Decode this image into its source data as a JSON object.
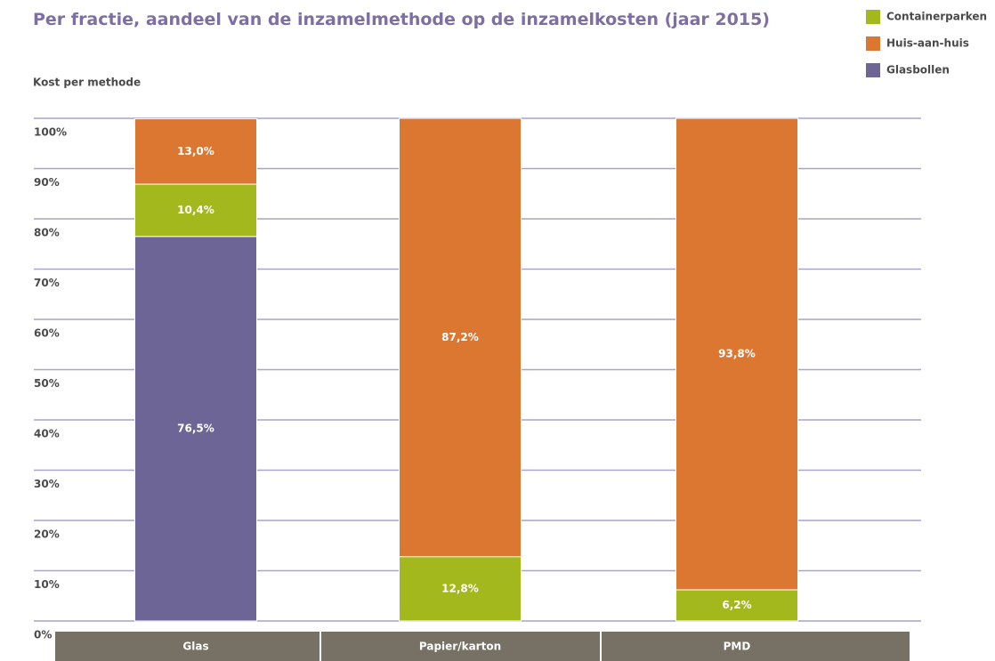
{
  "chart_data": {
    "type": "stacked-bar",
    "title": "Per fractie, aandeel van de inzamelmethode op de inzamelkosten (jaar 2015)",
    "y_label": "Kost per methode",
    "categories": [
      "Glas",
      "Papier/karton",
      "PMD"
    ],
    "series": [
      {
        "name": "Containerparken",
        "color": "#a3b81c",
        "values": [
          10.4,
          12.8,
          6.2
        ],
        "value_labels": [
          "10,4%",
          "12,8%",
          "6,2%"
        ]
      },
      {
        "name": "Huis-aan-huis",
        "color": "#dc7731",
        "values": [
          13.0,
          87.2,
          93.8
        ],
        "value_labels": [
          "13,0%",
          "87,2%",
          "93,8%"
        ]
      },
      {
        "name": "Glasbollen",
        "color": "#6c6596",
        "values": [
          76.5,
          null,
          null
        ],
        "value_labels": [
          "76,5%",
          null,
          null
        ]
      }
    ],
    "ylim": [
      0,
      100
    ],
    "yticks": [
      {
        "value": 0,
        "label": "0%"
      },
      {
        "value": 10,
        "label": "10%"
      },
      {
        "value": 20,
        "label": "20%"
      },
      {
        "value": 30,
        "label": "30%"
      },
      {
        "value": 40,
        "label": "40%"
      },
      {
        "value": 50,
        "label": "50%"
      },
      {
        "value": 60,
        "label": "60%"
      },
      {
        "value": 70,
        "label": "70%"
      },
      {
        "value": 80,
        "label": "80%"
      },
      {
        "value": 90,
        "label": "90%"
      },
      {
        "value": 100,
        "label": "100%"
      }
    ],
    "grid": true
  }
}
